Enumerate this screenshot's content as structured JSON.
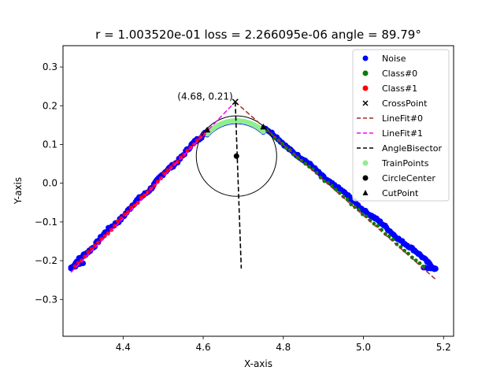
{
  "chart_data": {
    "type": "scatter",
    "title": "r = 1.003520e-01 loss = 2.266095e-06 angle = 89.79°",
    "xlabel": "X-axis",
    "ylabel": "Y-axis",
    "xlim": [
      4.25,
      5.225
    ],
    "ylim": [
      -0.395,
      0.355
    ],
    "xticks": [
      4.4,
      4.6,
      4.8,
      5.0,
      5.2
    ],
    "xtick_labels": [
      "4.4",
      "4.6",
      "4.8",
      "5.0",
      "5.2"
    ],
    "yticks": [
      -0.3,
      -0.2,
      -0.1,
      0.0,
      0.1,
      0.2,
      0.3
    ],
    "ytick_labels": [
      "−0.3",
      "−0.2",
      "−0.1",
      "0.0",
      "0.1",
      "0.2",
      "0.3"
    ],
    "grid": false,
    "legend_position": "top-right",
    "legend": [
      {
        "label": "Noise",
        "marker": "dot",
        "color": "#0000ff"
      },
      {
        "label": "Class#0",
        "marker": "dot",
        "color": "#008000"
      },
      {
        "label": "Class#1",
        "marker": "dot",
        "color": "#ff0000"
      },
      {
        "label": "CrossPoint",
        "marker": "x",
        "color": "#000000"
      },
      {
        "label": "LineFit#0",
        "marker": "dashed-line",
        "color": "#a52a2a"
      },
      {
        "label": "LineFit#1",
        "marker": "dashed-line",
        "color": "#ff00ff"
      },
      {
        "label": "AngleBisector",
        "marker": "dashed-line",
        "color": "#000000"
      },
      {
        "label": "TrainPoints",
        "marker": "dot",
        "color": "#90ee90"
      },
      {
        "label": "CircleCenter",
        "marker": "dot",
        "color": "#000000"
      },
      {
        "label": "CutPoint",
        "marker": "triangle",
        "color": "#000000"
      }
    ],
    "colors": {
      "noise": "#0000ff",
      "class0": "#008000",
      "class1": "#ff0000",
      "linefit0": "#a52a2a",
      "linefit1": "#ff00ff",
      "bisector": "#000000",
      "trainpoints": "#90ee90",
      "circle": "#000000"
    },
    "series": [
      {
        "name": "Noise",
        "description": "blue dense band along both arms, y from -0.22 to 0.16",
        "left_arm": {
          "x": [
            4.27,
            4.61
          ],
          "y": [
            -0.22,
            0.137
          ]
        },
        "right_arm": {
          "x": [
            4.75,
            5.18
          ],
          "y": [
            0.145,
            -0.22
          ]
        },
        "peak_arc": {
          "x": [
            4.61,
            4.75
          ],
          "y_top": 0.16
        }
      },
      {
        "name": "Class#0",
        "description": "green points on right arm",
        "x": [
          4.75,
          5.15
        ],
        "y": [
          0.145,
          -0.215
        ]
      },
      {
        "name": "Class#1",
        "description": "red points on left arm",
        "x": [
          4.28,
          4.61
        ],
        "y": [
          -0.215,
          0.137
        ]
      },
      {
        "name": "LineFit#0",
        "x": [
          4.68,
          5.18
        ],
        "y": [
          0.21,
          -0.248
        ]
      },
      {
        "name": "LineFit#1",
        "x": [
          4.27,
          4.68
        ],
        "y": [
          -0.23,
          0.21
        ]
      },
      {
        "name": "AngleBisector",
        "x": [
          4.68,
          4.695
        ],
        "y": [
          0.21,
          -0.22
        ]
      },
      {
        "name": "TrainPoints",
        "description": "light-green arc near peak",
        "x_range": [
          4.61,
          4.75
        ],
        "y_top": 0.165
      },
      {
        "name": "CircleCenter",
        "x": [
          4.683
        ],
        "y": [
          0.07
        ]
      },
      {
        "name": "CutPoint",
        "x": [
          4.61,
          4.75
        ],
        "y": [
          0.137,
          0.145
        ]
      },
      {
        "name": "CrossPoint",
        "x": [
          4.68
        ],
        "y": [
          0.21
        ]
      }
    ],
    "circle": {
      "center": [
        4.683,
        0.07
      ],
      "radius": 0.10035
    },
    "annotations": [
      {
        "text": "(4.68, 0.21)",
        "x": 4.68,
        "y": 0.21
      }
    ]
  }
}
